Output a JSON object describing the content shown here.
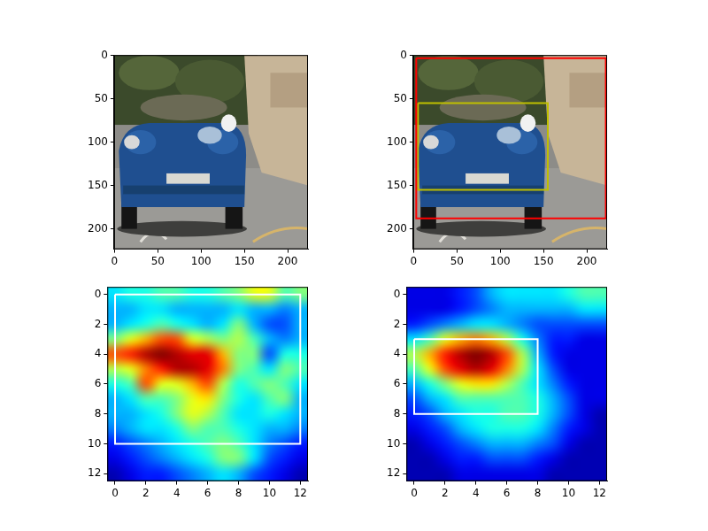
{
  "chart_data": [
    {
      "type": "image",
      "xlim": [
        -0.5,
        223.5
      ],
      "ylim": [
        223.5,
        -0.5
      ],
      "xticks": [
        0,
        50,
        100,
        150,
        200
      ],
      "yticks": [
        0,
        50,
        100,
        150,
        200
      ],
      "grid": false
    },
    {
      "type": "image",
      "xlim": [
        -0.5,
        223.5
      ],
      "ylim": [
        223.5,
        -0.5
      ],
      "xticks": [
        0,
        50,
        100,
        150,
        200
      ],
      "yticks": [
        0,
        50,
        100,
        150,
        200
      ],
      "grid": false,
      "boxes": [
        {
          "x": [
            3,
            222
          ],
          "y": [
            3,
            188
          ],
          "color": "#ff0000"
        },
        {
          "x": [
            5,
            155
          ],
          "y": [
            55,
            155
          ],
          "color": "#bfbf00"
        }
      ]
    },
    {
      "type": "heatmap",
      "xlim": [
        -0.5,
        12.5
      ],
      "ylim": [
        12.5,
        -0.5
      ],
      "xticks": [
        0,
        2,
        4,
        6,
        8,
        10,
        12
      ],
      "yticks": [
        0,
        2,
        4,
        6,
        8,
        10,
        12
      ],
      "grid": false,
      "cells": [
        [
          0.35,
          0.4,
          0.4,
          0.45,
          0.45,
          0.4,
          0.4,
          0.45,
          0.5,
          0.6,
          0.6,
          0.45,
          0.5
        ],
        [
          0.3,
          0.3,
          0.35,
          0.35,
          0.3,
          0.3,
          0.3,
          0.3,
          0.35,
          0.3,
          0.3,
          0.25,
          0.3
        ],
        [
          0.3,
          0.35,
          0.4,
          0.45,
          0.4,
          0.35,
          0.3,
          0.35,
          0.5,
          0.3,
          0.2,
          0.2,
          0.3
        ],
        [
          0.5,
          0.6,
          0.7,
          0.8,
          0.8,
          0.6,
          0.55,
          0.5,
          0.55,
          0.45,
          0.3,
          0.25,
          0.3
        ],
        [
          0.8,
          0.85,
          0.95,
          1.0,
          0.95,
          0.9,
          0.9,
          0.7,
          0.5,
          0.5,
          0.2,
          0.4,
          0.4
        ],
        [
          0.55,
          0.6,
          0.75,
          0.85,
          0.95,
          0.95,
          0.9,
          0.75,
          0.5,
          0.45,
          0.35,
          0.5,
          0.45
        ],
        [
          0.4,
          0.45,
          0.8,
          0.6,
          0.6,
          0.7,
          0.8,
          0.55,
          0.4,
          0.45,
          0.5,
          0.45,
          0.35
        ],
        [
          0.3,
          0.35,
          0.45,
          0.45,
          0.5,
          0.6,
          0.65,
          0.5,
          0.4,
          0.35,
          0.45,
          0.5,
          0.3
        ],
        [
          0.3,
          0.3,
          0.35,
          0.4,
          0.5,
          0.6,
          0.55,
          0.45,
          0.35,
          0.35,
          0.4,
          0.35,
          0.3
        ],
        [
          0.25,
          0.3,
          0.35,
          0.35,
          0.4,
          0.5,
          0.45,
          0.45,
          0.4,
          0.35,
          0.3,
          0.3,
          0.25
        ],
        [
          0.15,
          0.2,
          0.25,
          0.3,
          0.35,
          0.4,
          0.45,
          0.5,
          0.45,
          0.35,
          0.25,
          0.2,
          0.15
        ],
        [
          0.1,
          0.15,
          0.2,
          0.25,
          0.3,
          0.35,
          0.4,
          0.5,
          0.5,
          0.35,
          0.2,
          0.15,
          0.1
        ],
        [
          0.05,
          0.1,
          0.15,
          0.15,
          0.2,
          0.25,
          0.3,
          0.35,
          0.3,
          0.2,
          0.15,
          0.1,
          0.05
        ]
      ],
      "boxes": [
        {
          "x": [
            0,
            12
          ],
          "y": [
            0,
            10
          ],
          "color": "#ffffff"
        }
      ]
    },
    {
      "type": "heatmap",
      "xlim": [
        -0.5,
        12.5
      ],
      "ylim": [
        12.5,
        -0.5
      ],
      "xticks": [
        0,
        2,
        4,
        6,
        8,
        10,
        12
      ],
      "yticks": [
        0,
        2,
        4,
        6,
        8,
        10,
        12
      ],
      "grid": false,
      "cells": [
        [
          0.1,
          0.1,
          0.1,
          0.15,
          0.2,
          0.3,
          0.35,
          0.35,
          0.35,
          0.35,
          0.4,
          0.45,
          0.45
        ],
        [
          0.1,
          0.1,
          0.1,
          0.15,
          0.2,
          0.25,
          0.3,
          0.3,
          0.3,
          0.3,
          0.3,
          0.35,
          0.35
        ],
        [
          0.15,
          0.2,
          0.25,
          0.3,
          0.35,
          0.35,
          0.3,
          0.25,
          0.2,
          0.2,
          0.2,
          0.2,
          0.2
        ],
        [
          0.35,
          0.45,
          0.6,
          0.7,
          0.75,
          0.7,
          0.55,
          0.4,
          0.25,
          0.15,
          0.15,
          0.1,
          0.1
        ],
        [
          0.55,
          0.7,
          0.85,
          0.95,
          1.0,
          0.95,
          0.8,
          0.55,
          0.3,
          0.15,
          0.1,
          0.1,
          0.1
        ],
        [
          0.45,
          0.6,
          0.8,
          0.9,
          0.95,
          0.9,
          0.75,
          0.55,
          0.35,
          0.2,
          0.1,
          0.1,
          0.1
        ],
        [
          0.3,
          0.4,
          0.5,
          0.6,
          0.65,
          0.65,
          0.55,
          0.45,
          0.35,
          0.25,
          0.15,
          0.1,
          0.1
        ],
        [
          0.2,
          0.3,
          0.35,
          0.45,
          0.45,
          0.45,
          0.45,
          0.45,
          0.4,
          0.3,
          0.2,
          0.1,
          0.1
        ],
        [
          0.15,
          0.2,
          0.3,
          0.35,
          0.4,
          0.4,
          0.45,
          0.45,
          0.4,
          0.3,
          0.2,
          0.1,
          0.05
        ],
        [
          0.1,
          0.15,
          0.2,
          0.3,
          0.35,
          0.4,
          0.4,
          0.4,
          0.35,
          0.25,
          0.15,
          0.1,
          0.05
        ],
        [
          0.05,
          0.1,
          0.15,
          0.2,
          0.25,
          0.3,
          0.3,
          0.3,
          0.25,
          0.2,
          0.1,
          0.05,
          0.05
        ],
        [
          0.05,
          0.05,
          0.1,
          0.15,
          0.15,
          0.2,
          0.2,
          0.2,
          0.15,
          0.1,
          0.05,
          0.05,
          0.05
        ],
        [
          0.05,
          0.05,
          0.05,
          0.1,
          0.1,
          0.1,
          0.1,
          0.1,
          0.1,
          0.05,
          0.05,
          0.05,
          0.05
        ]
      ],
      "boxes": [
        {
          "x": [
            0,
            8
          ],
          "y": [
            3,
            8
          ],
          "color": "#ffffff"
        }
      ]
    }
  ]
}
